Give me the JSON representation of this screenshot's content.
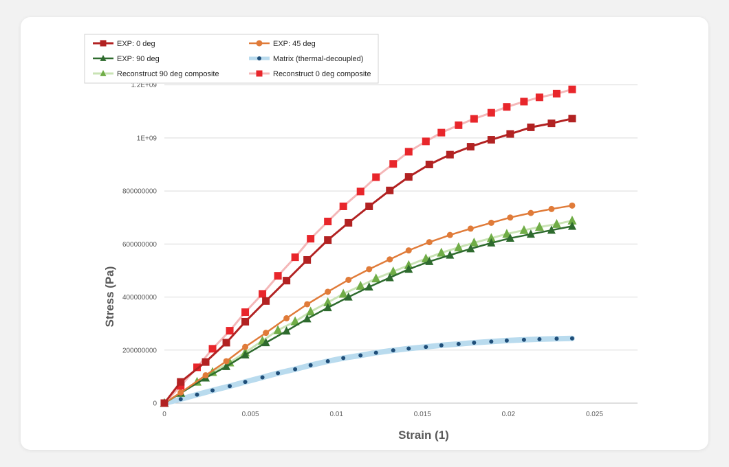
{
  "chart_data": {
    "type": "line",
    "xlabel": "Strain (1)",
    "ylabel": "Stress (Pa)",
    "xlim": [
      0,
      0.0275
    ],
    "ylim": [
      0,
      1300000000
    ],
    "x_ticks": [
      {
        "value": 0,
        "label": "0"
      },
      {
        "value": 0.005,
        "label": "0.005"
      },
      {
        "value": 0.01,
        "label": "0.01"
      },
      {
        "value": 0.015,
        "label": "0.015"
      },
      {
        "value": 0.02,
        "label": "0.02"
      },
      {
        "value": 0.025,
        "label": "0.025"
      }
    ],
    "y_ticks": [
      {
        "value": 0,
        "label": "0"
      },
      {
        "value": 200000000,
        "label": "200000000"
      },
      {
        "value": 400000000,
        "label": "400000000"
      },
      {
        "value": 600000000,
        "label": "600000000"
      },
      {
        "value": 800000000,
        "label": "800000000"
      },
      {
        "value": 1000000000,
        "label": "1E+09"
      },
      {
        "value": 1200000000,
        "label": "1.2E+09"
      }
    ],
    "grid": "horizontal",
    "legend_position": "top-left",
    "series": [
      {
        "name": "EXP: 0 deg",
        "color": "#b22222",
        "marker": "square",
        "line": "solid",
        "x": [
          0,
          0.00095,
          0.0024,
          0.0036,
          0.0047,
          0.0059,
          0.0071,
          0.0083,
          0.0095,
          0.0107,
          0.0119,
          0.0131,
          0.0142,
          0.0154,
          0.0166,
          0.0178,
          0.019,
          0.0201,
          0.0213,
          0.0225,
          0.0237
        ],
        "y": [
          0,
          80000000,
          155000000,
          228000000,
          307000000,
          385000000,
          462000000,
          540000000,
          615000000,
          680000000,
          742000000,
          802000000,
          853000000,
          900000000,
          937000000,
          967000000,
          993000000,
          1015000000,
          1040000000,
          1055000000,
          1073000000
        ]
      },
      {
        "name": "EXP: 45 deg",
        "color": "#e07b39",
        "marker": "circle",
        "line": "solid",
        "x": [
          0,
          0.00095,
          0.0024,
          0.0036,
          0.0047,
          0.0059,
          0.0071,
          0.0083,
          0.0095,
          0.0107,
          0.0119,
          0.0131,
          0.0142,
          0.0154,
          0.0166,
          0.0178,
          0.019,
          0.0201,
          0.0213,
          0.0225,
          0.0237
        ],
        "y": [
          0,
          40000000,
          105000000,
          158000000,
          212000000,
          265000000,
          320000000,
          373000000,
          420000000,
          465000000,
          505000000,
          542000000,
          576000000,
          607000000,
          634000000,
          658000000,
          680000000,
          700000000,
          717000000,
          732000000,
          745000000
        ]
      },
      {
        "name": "EXP: 90 deg",
        "color": "#2e6b2e",
        "marker": "triangle",
        "line": "solid",
        "x": [
          0,
          0.00095,
          0.0024,
          0.0036,
          0.0047,
          0.0059,
          0.0071,
          0.0083,
          0.0095,
          0.0107,
          0.0119,
          0.0131,
          0.0142,
          0.0154,
          0.0166,
          0.0178,
          0.019,
          0.0201,
          0.0213,
          0.0225,
          0.0237
        ],
        "y": [
          0,
          38000000,
          95000000,
          138000000,
          182000000,
          228000000,
          272000000,
          318000000,
          360000000,
          400000000,
          438000000,
          473000000,
          505000000,
          534000000,
          558000000,
          582000000,
          604000000,
          622000000,
          637000000,
          652000000,
          667000000
        ]
      },
      {
        "name": "Matrix (thermal-decoupled)",
        "color": "#1f4e79",
        "marker": "dot",
        "line": "#b9dbee",
        "x": [
          0,
          0.00095,
          0.0019,
          0.0028,
          0.0038,
          0.0047,
          0.0057,
          0.0066,
          0.0076,
          0.0085,
          0.0095,
          0.0104,
          0.0114,
          0.0123,
          0.0133,
          0.0142,
          0.0152,
          0.0161,
          0.0171,
          0.018,
          0.019,
          0.0199,
          0.0209,
          0.0218,
          0.0228,
          0.0237
        ],
        "y": [
          0,
          15000000,
          32000000,
          48000000,
          64000000,
          80000000,
          97000000,
          113000000,
          128000000,
          143000000,
          158000000,
          170000000,
          180000000,
          190000000,
          199000000,
          206000000,
          212000000,
          218000000,
          223000000,
          228000000,
          232000000,
          236000000,
          239000000,
          241000000,
          243000000,
          244000000
        ]
      },
      {
        "name": "Reconstruct 90 deg composite",
        "color": "#70ad47",
        "marker": "triangle",
        "line": "#c9e3b4",
        "x": [
          0,
          0.00095,
          0.0019,
          0.0028,
          0.0038,
          0.0047,
          0.0057,
          0.0066,
          0.0076,
          0.0085,
          0.0095,
          0.0104,
          0.0114,
          0.0123,
          0.0133,
          0.0142,
          0.0152,
          0.0161,
          0.0171,
          0.018,
          0.019,
          0.0199,
          0.0209,
          0.0218,
          0.0228,
          0.0237
        ],
        "y": [
          0,
          38000000,
          80000000,
          117000000,
          153000000,
          191000000,
          235000000,
          275000000,
          308000000,
          345000000,
          380000000,
          412000000,
          442000000,
          470000000,
          496000000,
          520000000,
          545000000,
          567000000,
          587000000,
          605000000,
          622000000,
          638000000,
          652000000,
          664000000,
          675000000,
          688000000
        ]
      },
      {
        "name": "Reconstruct 0 deg composite",
        "color": "#e8262b",
        "marker": "square",
        "line": "#f4b7b8",
        "x": [
          0,
          0.00095,
          0.0019,
          0.0028,
          0.0038,
          0.0047,
          0.0057,
          0.0066,
          0.0076,
          0.0085,
          0.0095,
          0.0104,
          0.0114,
          0.0123,
          0.0133,
          0.0142,
          0.0152,
          0.0161,
          0.0171,
          0.018,
          0.019,
          0.0199,
          0.0209,
          0.0218,
          0.0228,
          0.0237
        ],
        "y": [
          0,
          65000000,
          135000000,
          205000000,
          273000000,
          343000000,
          412000000,
          480000000,
          550000000,
          620000000,
          685000000,
          742000000,
          798000000,
          852000000,
          902000000,
          948000000,
          987000000,
          1020000000,
          1048000000,
          1072000000,
          1095000000,
          1117000000,
          1137000000,
          1153000000,
          1167000000,
          1183000000
        ]
      }
    ]
  }
}
